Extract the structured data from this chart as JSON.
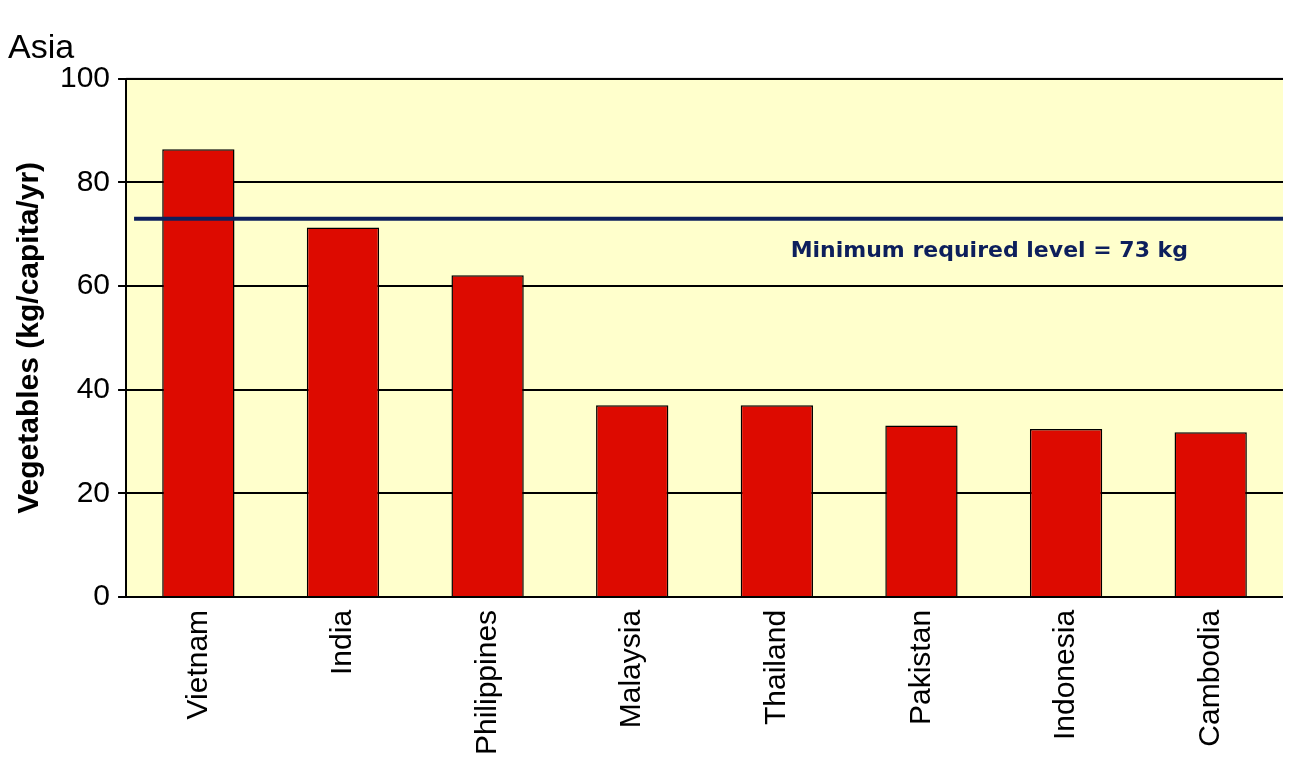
{
  "chart_data": {
    "type": "bar",
    "title": "Asia",
    "ylabel": "Vegetables (kg/capita/yr)",
    "categories": [
      "Vietnam",
      "India",
      "Philippines",
      "Malaysia",
      "Thailand",
      "Pakistan",
      "Indonesia",
      "Cambodia"
    ],
    "values": [
      86.4,
      71.3,
      62.1,
      37.0,
      37.0,
      33.1,
      32.4,
      31.8
    ],
    "color": "#dd0a00",
    "ylim": [
      0,
      100
    ],
    "yticks": [
      0,
      20,
      40,
      60,
      80,
      100
    ],
    "grid": "y",
    "ref_lines": [
      {
        "axis": "y",
        "value": 73,
        "label": "Minimum required level = 73 kg",
        "color": "#0d1f5c"
      }
    ]
  }
}
